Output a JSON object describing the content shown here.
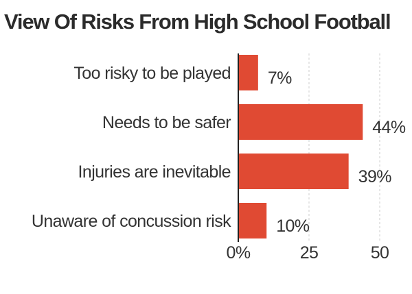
{
  "chart_data": {
    "type": "bar",
    "orientation": "horizontal",
    "title": "View Of Risks From High School Football",
    "categories": [
      "Too risky to be played",
      "Needs to be safer",
      "Injuries are inevitable",
      "Unaware of concussion risk"
    ],
    "values": [
      7,
      44,
      39,
      10
    ],
    "value_labels": [
      "7%",
      "44%",
      "39%",
      "10%"
    ],
    "xlim": [
      0,
      50
    ],
    "xticks": [
      0,
      25,
      50
    ],
    "xtick_labels": [
      "0%",
      "25",
      "50"
    ],
    "grid": "vertical dashed",
    "bar_color": "#e04a33"
  }
}
